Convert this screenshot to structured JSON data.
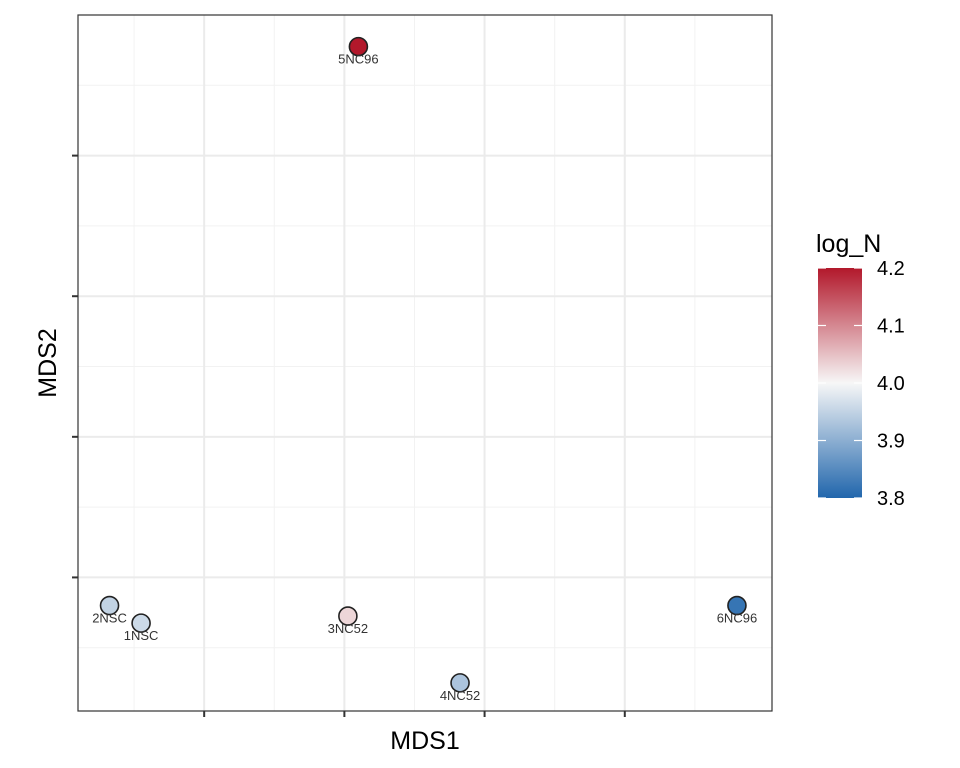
{
  "chart_data": {
    "type": "scatter",
    "title": "",
    "xlabel": "MDS1",
    "ylabel": "MDS2",
    "xlim": [
      -0.38,
      0.61
    ],
    "ylim": [
      -0.59,
      0.4
    ],
    "x_major_ticks": [
      -0.2,
      0,
      0.2,
      0.4
    ],
    "y_major_ticks": [
      -0.4,
      -0.2,
      0,
      0.2
    ],
    "tick_labels_shown": false,
    "grid": true,
    "points": [
      {
        "label": "5NC96",
        "x": 0.02,
        "y": 0.355,
        "log_N": 4.2
      },
      {
        "label": "2NSC",
        "x": -0.335,
        "y": -0.44,
        "log_N": 3.95
      },
      {
        "label": "1NSC",
        "x": -0.29,
        "y": -0.465,
        "log_N": 3.96
      },
      {
        "label": "3NC52",
        "x": 0.005,
        "y": -0.455,
        "log_N": 4.03
      },
      {
        "label": "4NC52",
        "x": 0.165,
        "y": -0.55,
        "log_N": 3.93
      },
      {
        "label": "6NC96",
        "x": 0.56,
        "y": -0.44,
        "log_N": 3.82
      }
    ],
    "legend": {
      "title": "log_N",
      "position": "right",
      "min": 3.8,
      "max": 4.2,
      "ticks": [
        4.2,
        4.1,
        4.0,
        3.9,
        3.8
      ],
      "tick_labels": [
        "4.2",
        "4.1",
        "4.0",
        "3.9",
        "3.8"
      ],
      "colors": {
        "low": "#2166ac",
        "mid": "#f7f7f7",
        "high": "#b2182b"
      }
    }
  }
}
